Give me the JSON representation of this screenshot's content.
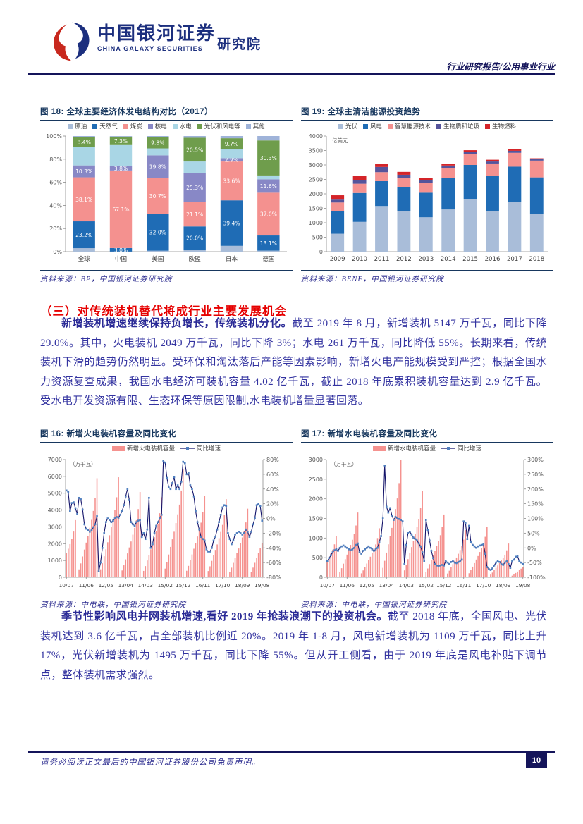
{
  "header": {
    "brand_cn": "中国银河证券",
    "brand_en": "CHINA GALAXY SECURITIES",
    "institute": "研究院",
    "report_type": "行业研究报告/公用事业行业",
    "brand_color": "#1c2f7e",
    "logo_red": "#c8281e",
    "logo_blue": "#1c2f7e"
  },
  "section_heading": "（三）对传统装机替代将成行业主要发展机会",
  "para1": {
    "lead": "新增装机增速继续保持负增长，传统装机分化。",
    "rest": "截至 2019 年 8 月，新增装机 5147 万千瓦，同比下降 29.0%。其中，火电装机 2049 万千瓦，同比下降 3%；水电 261 万千瓦，同比降低 55%。长期来看，传统装机下滑的趋势仍然明显。受环保和淘汰落后产能等因素影响，新增火电产能规模受到严控；根据全国水力资源复查成果，我国水电经济可装机容量 4.02 亿千瓦，截止 2018 年底累积装机容量达到 2.9 亿千瓦。受水电开发资源有限、生态环保等原因限制,水电装机增量显著回落。"
  },
  "para2": {
    "lead": "季节性影响风电并网装机增速,看好 2019 年抢装浪潮下的投资机会。",
    "rest": "截至 2018 年底，全国风电、光伏装机达到 3.6 亿千瓦，占全部装机比例近 20%。2019 年 1-8 月，风电新增装机为 1109 万千瓦，同比上升 17%，光伏新增装机为 1495 万千瓦，同比下降 55%。但从开工侧看，由于 2019 年底是风电补贴下调节点，整体装机需求强烈。"
  },
  "footer": {
    "disclaimer": "请务必阅读正文最后的中国银河证券股份公司免责声明。",
    "page_number": "10"
  },
  "chart_data": [
    {
      "type": "bar",
      "variant": "stacked-100",
      "title": "图 18: 全球主要经济体发电结构对比（2017）",
      "categories": [
        "全球",
        "中国",
        "美国",
        "欧盟",
        "日本",
        "德国"
      ],
      "series": [
        {
          "name": "原油",
          "color": "#a9bdd9",
          "labeled": false,
          "values": [
            3.0,
            0.1,
            0.8,
            1.8,
            5.0,
            0.9
          ]
        },
        {
          "name": "天然气",
          "color": "#1f6cb5",
          "labeled": true,
          "values": [
            23.2,
            3.0,
            32.0,
            20.0,
            39.4,
            13.1
          ]
        },
        {
          "name": "煤炭",
          "color": "#f4918f",
          "labeled": true,
          "values": [
            38.1,
            67.1,
            30.7,
            21.1,
            33.6,
            37.0
          ]
        },
        {
          "name": "核电",
          "color": "#8888c6",
          "labeled": true,
          "values": [
            10.3,
            3.8,
            19.8,
            25.3,
            2.9,
            11.6
          ]
        },
        {
          "name": "水电",
          "color": "#a9d6e5",
          "labeled": false,
          "values": [
            16.0,
            18.2,
            6.0,
            9.8,
            7.5,
            3.3
          ]
        },
        {
          "name": "光伏和风电等",
          "color": "#6f9d4c",
          "labeled": true,
          "values": [
            8.4,
            7.3,
            9.8,
            20.5,
            9.7,
            30.3
          ]
        },
        {
          "name": "其他",
          "color": "#9fb3d9",
          "labeled": false,
          "values": [
            1.0,
            0.5,
            0.9,
            1.5,
            1.9,
            3.8
          ]
        }
      ],
      "ylim": [
        0,
        100
      ],
      "ytick_step": 20,
      "grid": false,
      "legend_position": "top",
      "source": "资料来源：BP，中国银河证券研究院"
    },
    {
      "type": "bar",
      "variant": "stacked",
      "title": "图 19: 全球主清洁能源投资趋势",
      "unit_label": "亿美元",
      "categories": [
        "2009",
        "2010",
        "2011",
        "2012",
        "2013",
        "2014",
        "2015",
        "2016",
        "2017",
        "2018"
      ],
      "series": [
        {
          "name": "光伏",
          "color": "#a9bdd9",
          "values": [
            620,
            1030,
            1580,
            1400,
            1190,
            1460,
            1810,
            1410,
            1710,
            1310
          ]
        },
        {
          "name": "风电",
          "color": "#1f6cb5",
          "values": [
            780,
            1000,
            860,
            830,
            850,
            1080,
            1190,
            1220,
            1230,
            1260
          ]
        },
        {
          "name": "智慧能源技术",
          "color": "#f4918f",
          "values": [
            300,
            320,
            310,
            330,
            350,
            360,
            380,
            420,
            480,
            580
          ]
        },
        {
          "name": "生物质和垃圾",
          "color": "#55549b",
          "values": [
            100,
            130,
            180,
            100,
            90,
            80,
            70,
            70,
            70,
            50
          ]
        },
        {
          "name": "生物燃料",
          "color": "#d42429",
          "values": [
            150,
            140,
            100,
            100,
            70,
            50,
            60,
            60,
            50,
            30
          ]
        }
      ],
      "ylim": [
        0,
        4000
      ],
      "ytick_step": 500,
      "grid": false,
      "legend_position": "top",
      "source": "资料来源：BENF，中国银河证券研究院"
    },
    {
      "type": "bar",
      "variant": "combo-bar-line",
      "title": "图 16: 新增火电装机容量及同比变化",
      "legend": [
        "新增火电装机容量",
        "同比增速"
      ],
      "unit_label": "（万千瓦）",
      "bar_color": "#f5928f",
      "line_color": "#14146a",
      "marker_color": "#4f7fbf",
      "x_ticks": [
        "10/07",
        "11/06",
        "12/05",
        "13/04",
        "14/03",
        "15/02",
        "15/12",
        "16/11",
        "17/10",
        "18/09",
        "19/08"
      ],
      "x_tick_idx": [
        0,
        11,
        22,
        33,
        44,
        55,
        65,
        76,
        87,
        98,
        109
      ],
      "ylim_left": [
        0,
        7000
      ],
      "ytick_left": 1000,
      "ylim_right": [
        -80,
        80
      ],
      "ytick_right": 20,
      "bars": [
        1428,
        1700,
        1972,
        2278,
        2720,
        3400,
        0,
        471,
        825,
        1237,
        1649,
        2062,
        2474,
        2945,
        3416,
        3946,
        4712,
        5890,
        0,
        476,
        833,
        1250,
        1666,
        2083,
        2499,
        2975,
        3451,
        3987,
        4760,
        5950,
        0,
        406,
        710,
        1065,
        1420,
        1775,
        2129,
        2535,
        2941,
        3397,
        4056,
        5070,
        0,
        381,
        666,
        1000,
        1333,
        1666,
        1999,
        2380,
        2761,
        3189,
        3808,
        4760,
        0,
        516,
        903,
        1355,
        1806,
        2258,
        2709,
        3225,
        3741,
        4322,
        5160,
        6450,
        0,
        388,
        679,
        1019,
        1358,
        1698,
        2037,
        2425,
        2813,
        3250,
        3880,
        4850,
        0,
        372,
        651,
        977,
        1302,
        1628,
        1953,
        2325,
        2697,
        3116,
        3720,
        4650,
        0,
        326,
        571,
        857,
        1142,
        1428,
        1714,
        2040,
        2366,
        2734,
        3264,
        4080,
        0,
        328,
        574,
        861,
        1147,
        1434,
        1721,
        2049
      ],
      "line_pct": [
        38,
        36,
        10,
        21,
        22,
        14,
        6,
        28,
        26,
        12,
        -8,
        -14,
        -16,
        -18,
        -16,
        -12,
        -8,
        3,
        -72,
        -60,
        -40,
        -20,
        -5,
        0,
        -2,
        -5,
        -3,
        0,
        2,
        1,
        5,
        10,
        18,
        30,
        40,
        25,
        -5,
        -8,
        -10,
        -5,
        -3,
        -2,
        -25,
        -20,
        -28,
        -15,
        28,
        -40,
        -35,
        -20,
        -10,
        -5,
        0,
        5,
        78,
        76,
        55,
        42,
        40,
        48,
        56,
        40,
        45,
        40,
        50,
        77,
        75,
        60,
        62,
        45,
        40,
        30,
        10,
        -5,
        -15,
        -25,
        -28,
        -30,
        -42,
        -45,
        -45,
        -40,
        -30,
        -25,
        -15,
        -5,
        5,
        15,
        18,
        17,
        -20,
        -28,
        -35,
        -30,
        -22,
        -20,
        -18,
        -20,
        -22,
        -20,
        -15,
        -18,
        -25,
        -18,
        -8,
        0,
        18,
        20,
        17,
        -3
      ],
      "source": "资料来源：中电联，中国银河证券研究院"
    },
    {
      "type": "bar",
      "variant": "combo-bar-line",
      "title": "图 17: 新增水电装机容量及同比变化",
      "legend": [
        "新增水电装机容量",
        "同比增速"
      ],
      "unit_label": "（万千瓦）",
      "bar_color": "#f5928f",
      "line_color": "#14146a",
      "marker_color": "#4f7fbf",
      "x_ticks": [
        "10/07",
        "11/06",
        "12/05",
        "13/04",
        "14/03",
        "15/02",
        "15/12",
        "16/11",
        "17/10",
        "18/09",
        "19/08"
      ],
      "x_tick_idx": [
        0,
        11,
        22,
        33,
        44,
        55,
        65,
        76,
        87,
        98,
        109
      ],
      "ylim_left": [
        0,
        3000
      ],
      "ytick_left": 500,
      "ylim_right": [
        -100,
        300
      ],
      "ytick_right": 50,
      "bars": [
        441,
        525,
        609,
        704,
        840,
        1050,
        0,
        132,
        231,
        347,
        462,
        578,
        693,
        825,
        957,
        1106,
        1320,
        1650,
        0,
        100,
        175,
        263,
        350,
        438,
        525,
        625,
        725,
        838,
        1000,
        1250,
        0,
        240,
        420,
        630,
        840,
        1050,
        1260,
        1500,
        1740,
        2010,
        2400,
        3000,
        0,
        176,
        308,
        462,
        616,
        770,
        924,
        1100,
        1276,
        1474,
        1760,
        2200,
        0,
        128,
        224,
        336,
        448,
        560,
        672,
        800,
        928,
        1072,
        1280,
        1600,
        0,
        96,
        168,
        252,
        336,
        420,
        504,
        600,
        696,
        804,
        960,
        1200,
        0,
        103,
        181,
        271,
        361,
        452,
        542,
        645,
        748,
        864,
        1032,
        1290,
        0,
        69,
        120,
        181,
        241,
        301,
        361,
        430,
        499,
        576,
        688,
        860,
        0,
        42,
        73,
        110,
        146,
        183,
        220,
        261
      ],
      "line_pct": [
        -45,
        -35,
        -25,
        -15,
        -8,
        -5,
        -10,
        0,
        5,
        8,
        5,
        0,
        -5,
        -8,
        -5,
        0,
        10,
        15,
        -15,
        -20,
        -10,
        -5,
        0,
        5,
        0,
        -5,
        -10,
        -5,
        0,
        20,
        40,
        100,
        280,
        140,
        120,
        135,
        110,
        95,
        105,
        100,
        98,
        95,
        90,
        -55,
        10,
        50,
        55,
        45,
        35,
        30,
        25,
        15,
        5,
        -15,
        -45,
        95,
        60,
        25,
        -10,
        -35,
        -55,
        -60,
        -62,
        -60,
        -58,
        -60,
        -45,
        -50,
        -55,
        -48,
        -45,
        -50,
        -52,
        -48,
        -45,
        -40,
        90,
        85,
        30,
        75,
        20,
        10,
        5,
        0,
        5,
        8,
        10,
        12,
        -20,
        -65,
        -72,
        -75,
        -70,
        -60,
        -50,
        -45,
        -48,
        -55,
        -58,
        -50,
        -45,
        -55,
        -68,
        -45,
        -40,
        -30,
        -28,
        -45,
        -50,
        -55
      ],
      "source": "资料来源：中电联，中国银河证券研究院"
    }
  ]
}
